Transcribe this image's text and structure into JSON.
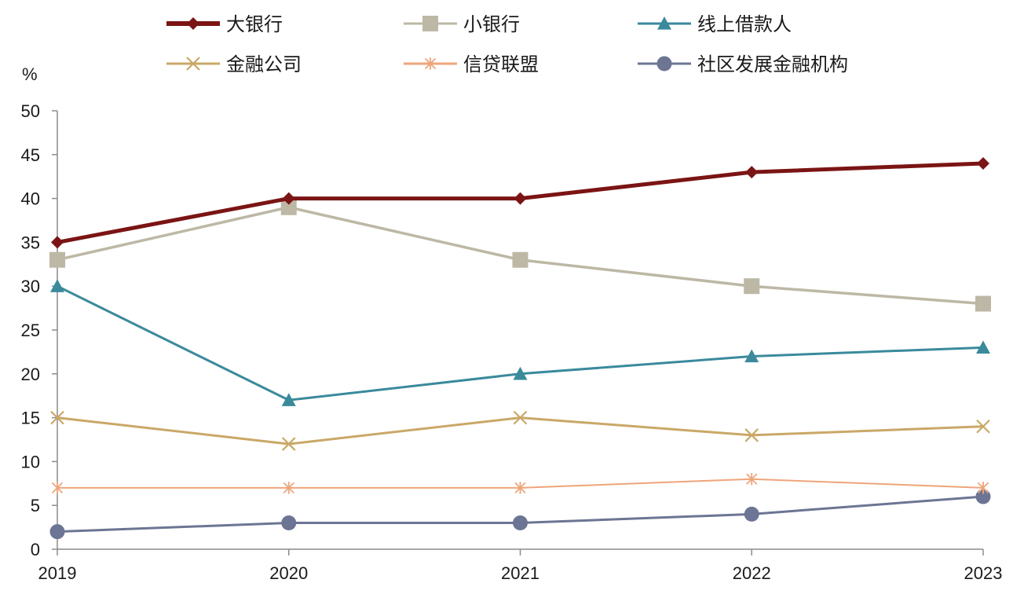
{
  "chart_data": {
    "type": "line",
    "title": "",
    "unit": "%",
    "xlabel": "",
    "ylabel": "%",
    "x": [
      "2019",
      "2020",
      "2021",
      "2022",
      "2023"
    ],
    "ylim": [
      0,
      50
    ],
    "yticks": [
      0,
      5,
      10,
      15,
      20,
      25,
      30,
      35,
      40,
      45,
      50
    ],
    "grid": false,
    "legend_position": "top",
    "series": [
      {
        "name": "大银行",
        "values": [
          35,
          40,
          40,
          43,
          44
        ],
        "color": "#7b1414",
        "marker": "diamond"
      },
      {
        "name": "小银行",
        "values": [
          33,
          39,
          33,
          30,
          28
        ],
        "color": "#bdb8a5",
        "marker": "square"
      },
      {
        "name": "线上借款人",
        "values": [
          30,
          17,
          20,
          22,
          23
        ],
        "color": "#3a8a9c",
        "marker": "triangle"
      },
      {
        "name": "金融公司",
        "values": [
          15,
          12,
          15,
          13,
          14
        ],
        "color": "#c9a867",
        "marker": "x"
      },
      {
        "name": "信贷联盟",
        "values": [
          7,
          7,
          7,
          8,
          7
        ],
        "color": "#eea57a",
        "marker": "asterisk"
      },
      {
        "name": "社区发展金融机构",
        "values": [
          2,
          3,
          3,
          4,
          6
        ],
        "color": "#6c7593",
        "marker": "circle"
      }
    ]
  }
}
